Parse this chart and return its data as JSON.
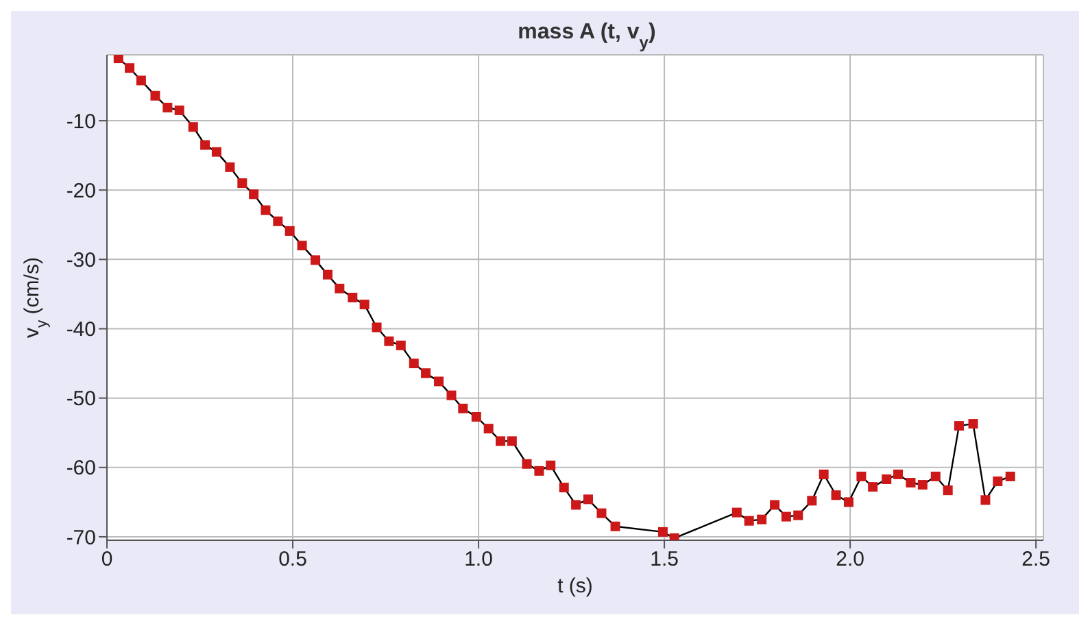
{
  "chart_data": {
    "type": "line",
    "title": "mass A (t, v$_{y}$)",
    "xlabel": "t (s)",
    "ylabel": "v$_{y}$ (cm/s)",
    "xlim": [
      0,
      2.52
    ],
    "ylim": [
      -70.5,
      -0.5
    ],
    "xticks": [
      {
        "value": 0,
        "label": "0"
      },
      0.5,
      {
        "value": 1,
        "label": "1.0"
      },
      1.5,
      {
        "value": 2,
        "label": "2.0"
      },
      2.5
    ],
    "yticks": [
      -10,
      -20,
      -30,
      -40,
      -50,
      -60,
      -70
    ],
    "grid": true,
    "marker": "square",
    "line_style": "solid",
    "series": [
      {
        "color": "#cc1818",
        "x": [
          0.031,
          0.061,
          0.092,
          0.13,
          0.163,
          0.195,
          0.232,
          0.264,
          0.295,
          0.331,
          0.364,
          0.395,
          0.427,
          0.46,
          0.492,
          0.525,
          0.561,
          0.594,
          0.626,
          0.661,
          0.693,
          0.726,
          0.759,
          0.791,
          0.826,
          0.858,
          0.893,
          0.927,
          0.958,
          0.994,
          1.027,
          1.059,
          1.09,
          1.13,
          1.163,
          1.194,
          1.23,
          1.262,
          1.295,
          1.331,
          1.368,
          1.496,
          1.527,
          1.695,
          1.728,
          1.762,
          1.797,
          1.828,
          1.86,
          1.897,
          1.929,
          1.962,
          1.996,
          2.03,
          2.061,
          2.098,
          2.129,
          2.163,
          2.195,
          2.23,
          2.263,
          2.293,
          2.331,
          2.364,
          2.397,
          2.431
        ],
        "values": [
          -1,
          -2.4,
          -4.2,
          -6.4,
          -8.1,
          -8.5,
          -10.9,
          -13.5,
          -14.5,
          -16.7,
          -19,
          -20.6,
          -22.9,
          -24.5,
          -25.9,
          -28,
          -30.1,
          -32.2,
          -34.2,
          -35.5,
          -36.5,
          -39.8,
          -41.8,
          -42.4,
          -45,
          -46.4,
          -47.6,
          -49.6,
          -51.5,
          -52.7,
          -54.4,
          -56.2,
          -56.2,
          -59.5,
          -60.5,
          -59.7,
          -62.9,
          -65.4,
          -64.6,
          -66.6,
          -68.5,
          -69.3,
          -70.2,
          -66.5,
          -67.7,
          -67.5,
          -65.4,
          -67.1,
          -66.9,
          -64.8,
          -61,
          -64,
          -65,
          -61.3,
          -62.8,
          -61.7,
          -61,
          -62.2,
          -62.5,
          -61.3,
          -63.3,
          -54,
          -53.7,
          -64.7,
          -62,
          -61.3
        ]
      }
    ]
  }
}
